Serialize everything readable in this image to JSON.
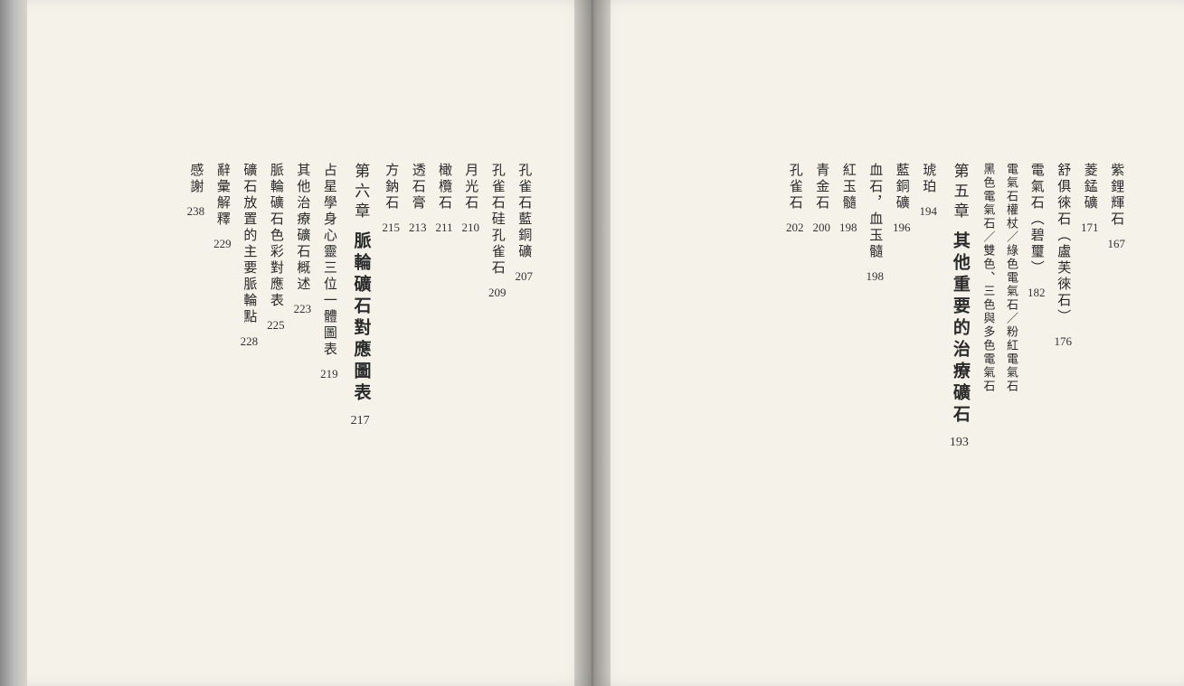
{
  "right_page": {
    "entries": [
      {
        "text": "紫鋰輝石",
        "page": "167",
        "type": "item"
      },
      {
        "text": "菱錳礦",
        "page": "171",
        "type": "item"
      },
      {
        "text": "舒俱徠石（盧芙徠石）",
        "page": "176",
        "type": "item"
      },
      {
        "text": "電氣石（碧璽）",
        "page": "182",
        "type": "item"
      },
      {
        "text": "電氣石權杖／綠色電氣石／粉紅電氣石",
        "page": "",
        "type": "nested"
      },
      {
        "text": "黑色電氣石／雙色、三色與多色電氣石",
        "page": "",
        "type": "nested"
      },
      {
        "text": "其他重要的治療礦石",
        "page": "193",
        "type": "chapter",
        "prefix": "第五章"
      },
      {
        "text": "琥珀",
        "page": "194",
        "type": "item"
      },
      {
        "text": "藍銅礦",
        "page": "196",
        "type": "item"
      },
      {
        "text": "血石，血玉髓",
        "page": "198",
        "type": "item"
      },
      {
        "text": "紅玉髓",
        "page": "198",
        "type": "item"
      },
      {
        "text": "青金石",
        "page": "200",
        "type": "item"
      },
      {
        "text": "孔雀石",
        "page": "202",
        "type": "item"
      }
    ]
  },
  "left_page": {
    "entries": [
      {
        "text": "孔雀石藍銅礦",
        "page": "207",
        "type": "item"
      },
      {
        "text": "孔雀石硅孔雀石",
        "page": "209",
        "type": "item"
      },
      {
        "text": "月光石",
        "page": "210",
        "type": "item"
      },
      {
        "text": "橄欖石",
        "page": "211",
        "type": "item"
      },
      {
        "text": "透石膏",
        "page": "213",
        "type": "item"
      },
      {
        "text": "方鈉石",
        "page": "215",
        "type": "item"
      },
      {
        "text": "脈輪礦石對應圖表",
        "page": "217",
        "type": "chapter",
        "prefix": "第六章"
      },
      {
        "text": "占星學身心靈三位一體圖表",
        "page": "219",
        "type": "item"
      },
      {
        "text": "其他治療礦石概述",
        "page": "223",
        "type": "item"
      },
      {
        "text": "脈輪礦石色彩對應表",
        "page": "225",
        "type": "item"
      },
      {
        "text": "礦石放置的主要脈輪點",
        "page": "228",
        "type": "item"
      },
      {
        "text": "辭彙解釋",
        "page": "229",
        "type": "item"
      },
      {
        "text": "感謝",
        "page": "238",
        "type": "item"
      }
    ]
  }
}
